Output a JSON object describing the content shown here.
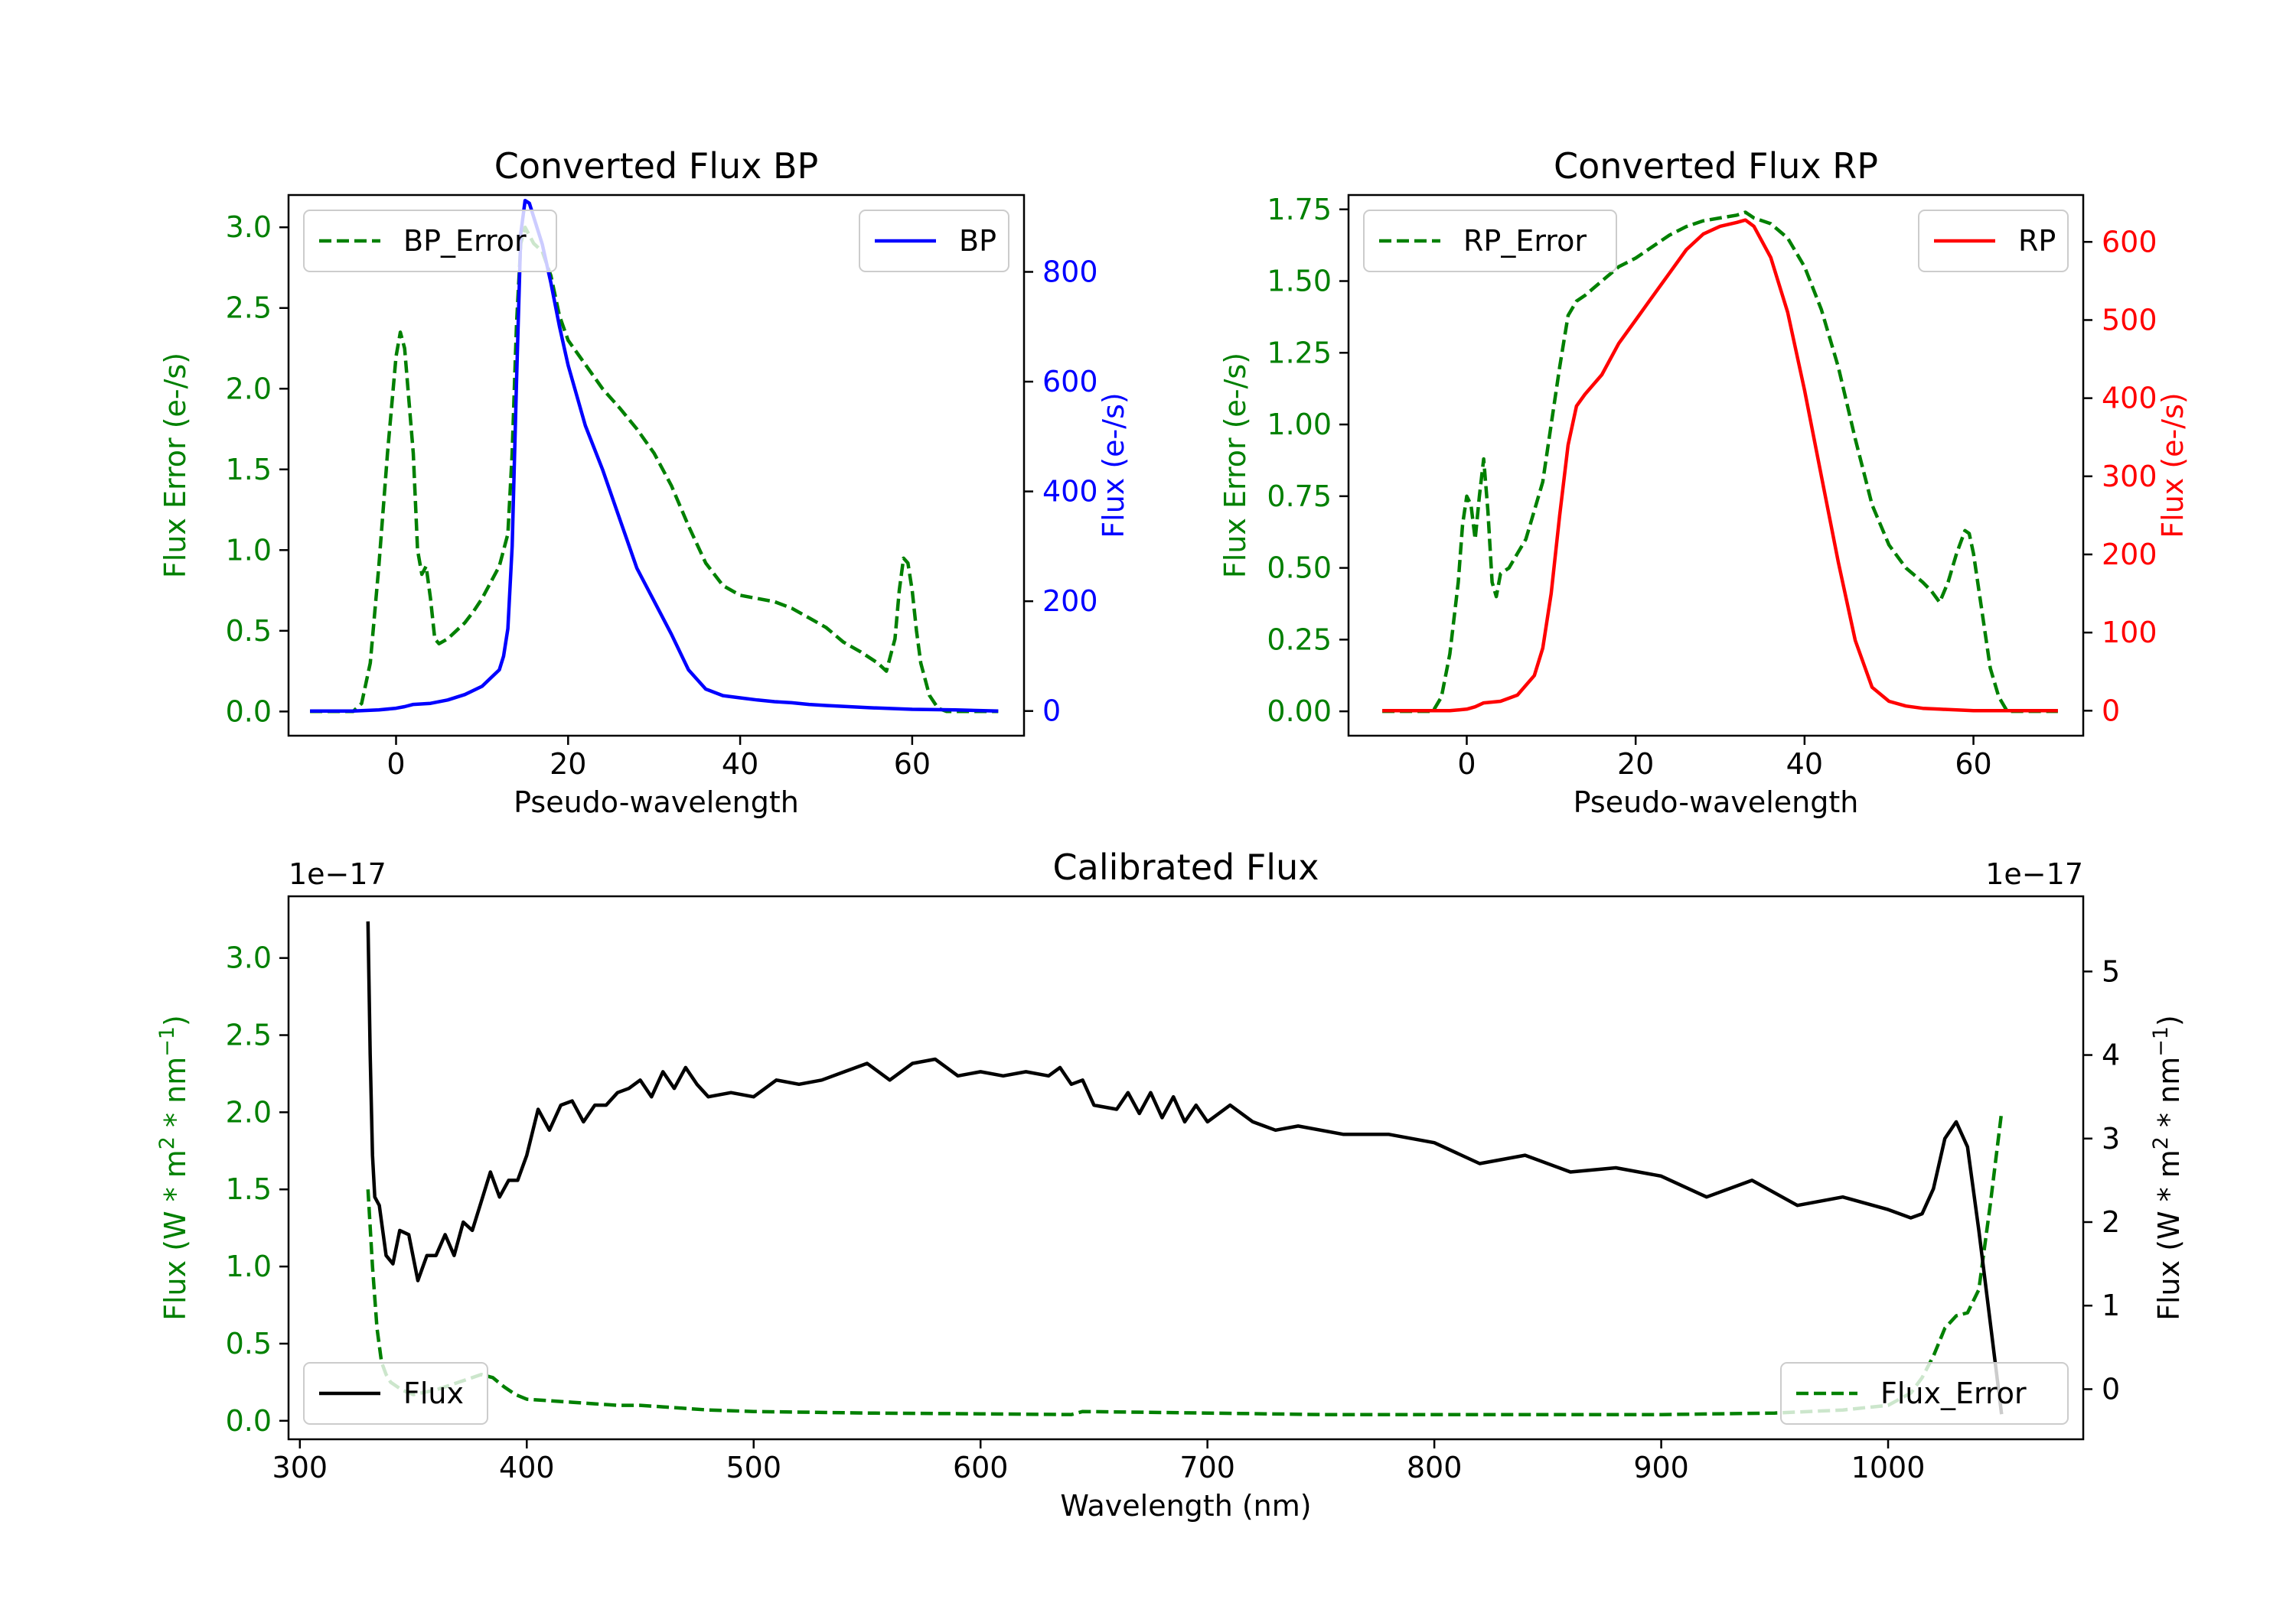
{
  "chart_data": [
    {
      "type": "line",
      "title": "Converted Flux BP",
      "xlabel": "Pseudo-wavelength",
      "xlim": [
        -12.5,
        73
      ],
      "xticks": [
        0,
        20,
        40,
        60
      ],
      "left_axis": {
        "label": "Flux Error (e-/s)",
        "color": "#008000",
        "ylim": [
          -0.15,
          3.2
        ],
        "ticks": [
          0.0,
          0.5,
          1.0,
          1.5,
          2.0,
          2.5,
          3.0
        ],
        "tick_labels": [
          "0.0",
          "0.5",
          "1.0",
          "1.5",
          "2.0",
          "2.5",
          "3.0"
        ]
      },
      "right_axis": {
        "label": "Flux (e-/s)",
        "color": "#0000ff",
        "ylim": [
          -45,
          940
        ],
        "ticks": [
          0,
          200,
          400,
          600,
          800
        ],
        "tick_labels": [
          "0",
          "200",
          "400",
          "600",
          "800"
        ]
      },
      "series": [
        {
          "name": "BP_Error",
          "axis": "left",
          "style": "dashed",
          "color": "#008000",
          "x": [
            -10,
            -5,
            -4,
            -3,
            -2,
            -1,
            0,
            0.5,
            1,
            2,
            2.5,
            3,
            3.5,
            4,
            4.5,
            5,
            6,
            7,
            8,
            9,
            10,
            11,
            12,
            13,
            13.5,
            14,
            14.5,
            15,
            15.5,
            16,
            17,
            18,
            19,
            20,
            22,
            24,
            26,
            28,
            30,
            32,
            34,
            36,
            38,
            40,
            42,
            44,
            46,
            48,
            50,
            52,
            54,
            56,
            57,
            58,
            58.5,
            59,
            59.5,
            60,
            60.5,
            61,
            62,
            63,
            64,
            65,
            70
          ],
          "values": [
            0.0,
            0.0,
            0.05,
            0.3,
            0.9,
            1.6,
            2.2,
            2.35,
            2.25,
            1.6,
            1.0,
            0.85,
            0.9,
            0.7,
            0.45,
            0.42,
            0.45,
            0.5,
            0.55,
            0.62,
            0.7,
            0.8,
            0.9,
            1.1,
            1.6,
            2.4,
            2.9,
            3.0,
            2.95,
            2.9,
            2.85,
            2.7,
            2.45,
            2.3,
            2.15,
            2.0,
            1.88,
            1.75,
            1.6,
            1.4,
            1.15,
            0.92,
            0.78,
            0.72,
            0.7,
            0.68,
            0.64,
            0.58,
            0.52,
            0.43,
            0.37,
            0.3,
            0.25,
            0.45,
            0.75,
            0.95,
            0.92,
            0.75,
            0.5,
            0.3,
            0.1,
            0.02,
            0.0,
            0.0,
            0.0
          ]
        },
        {
          "name": "BP",
          "axis": "right",
          "style": "solid",
          "color": "#0000ff",
          "x": [
            -10,
            -5,
            -2,
            0,
            1,
            2,
            4,
            6,
            8,
            10,
            11,
            12,
            12.5,
            13,
            13.5,
            14,
            14.5,
            15,
            15.5,
            16,
            17,
            18,
            19,
            20,
            22,
            24,
            26,
            28,
            30,
            32,
            34,
            36,
            38,
            40,
            42,
            44,
            46,
            48,
            50,
            55,
            60,
            65,
            70
          ],
          "values": [
            0,
            0,
            2,
            5,
            8,
            12,
            14,
            20,
            30,
            45,
            60,
            75,
            100,
            150,
            300,
            600,
            870,
            930,
            925,
            900,
            850,
            780,
            700,
            630,
            520,
            440,
            350,
            260,
            200,
            140,
            75,
            40,
            28,
            24,
            20,
            17,
            15,
            12,
            10,
            6,
            3,
            2,
            0
          ]
        }
      ],
      "legend": [
        {
          "label": "BP_Error",
          "style": "dashed",
          "color": "#008000",
          "placement": "upper left"
        },
        {
          "label": "BP",
          "style": "solid",
          "color": "#0000ff",
          "placement": "upper right"
        }
      ]
    },
    {
      "type": "line",
      "title": "Converted Flux RP",
      "xlabel": "Pseudo-wavelength",
      "xlim": [
        -14,
        73
      ],
      "xticks": [
        0,
        20,
        40,
        60
      ],
      "left_axis": {
        "label": "Flux Error (e-/s)",
        "color": "#008000",
        "ylim": [
          -0.085,
          1.8
        ],
        "ticks": [
          0.0,
          0.25,
          0.5,
          0.75,
          1.0,
          1.25,
          1.5,
          1.75
        ],
        "tick_labels": [
          "0.00",
          "0.25",
          "0.50",
          "0.75",
          "1.00",
          "1.25",
          "1.50",
          "1.75"
        ]
      },
      "right_axis": {
        "label": "Flux (e-/s)",
        "color": "#ff0000",
        "ylim": [
          -32,
          660
        ],
        "ticks": [
          0,
          100,
          200,
          300,
          400,
          500,
          600
        ],
        "tick_labels": [
          "0",
          "100",
          "200",
          "300",
          "400",
          "500",
          "600"
        ]
      },
      "series": [
        {
          "name": "RP_Error",
          "axis": "left",
          "style": "dashed",
          "color": "#008000",
          "x": [
            -10,
            -4,
            -3,
            -2,
            -1,
            -0.5,
            0,
            0.5,
            1,
            1.5,
            2,
            2.5,
            3,
            3.5,
            4,
            5,
            6,
            7,
            8,
            9,
            10,
            11,
            12,
            13,
            14,
            16,
            18,
            20,
            22,
            24,
            26,
            28,
            30,
            32,
            33,
            34,
            36,
            38,
            40,
            42,
            44,
            46,
            48,
            50,
            52,
            54,
            55,
            56,
            57,
            58,
            59,
            59.5,
            60,
            61,
            62,
            63,
            64,
            70
          ],
          "values": [
            0.0,
            0.0,
            0.05,
            0.2,
            0.45,
            0.65,
            0.75,
            0.72,
            0.6,
            0.75,
            0.88,
            0.7,
            0.45,
            0.4,
            0.48,
            0.5,
            0.55,
            0.6,
            0.7,
            0.8,
            1.0,
            1.2,
            1.38,
            1.43,
            1.45,
            1.5,
            1.55,
            1.58,
            1.62,
            1.66,
            1.69,
            1.71,
            1.72,
            1.73,
            1.74,
            1.72,
            1.7,
            1.65,
            1.55,
            1.4,
            1.2,
            0.95,
            0.72,
            0.58,
            0.5,
            0.45,
            0.42,
            0.38,
            0.45,
            0.55,
            0.63,
            0.62,
            0.55,
            0.35,
            0.15,
            0.05,
            0.0,
            0.0
          ]
        },
        {
          "name": "RP",
          "axis": "right",
          "style": "solid",
          "color": "#ff0000",
          "x": [
            -10,
            -5,
            -2,
            0,
            1,
            2,
            4,
            6,
            8,
            9,
            10,
            11,
            12,
            13,
            14,
            16,
            18,
            20,
            22,
            24,
            26,
            28,
            30,
            32,
            33,
            34,
            36,
            38,
            40,
            42,
            44,
            46,
            48,
            50,
            52,
            54,
            56,
            58,
            60,
            62,
            65,
            70
          ],
          "values": [
            0,
            0,
            0,
            2,
            5,
            10,
            12,
            20,
            45,
            80,
            150,
            250,
            340,
            390,
            405,
            430,
            470,
            500,
            530,
            560,
            590,
            610,
            620,
            625,
            628,
            620,
            580,
            510,
            410,
            300,
            190,
            90,
            30,
            12,
            6,
            3,
            2,
            1,
            0,
            0,
            0,
            0
          ]
        }
      ],
      "legend": [
        {
          "label": "RP_Error",
          "style": "dashed",
          "color": "#008000",
          "placement": "upper left"
        },
        {
          "label": "RP",
          "style": "solid",
          "color": "#ff0000",
          "placement": "upper right"
        }
      ]
    },
    {
      "type": "line",
      "title": "Calibrated Flux",
      "xlabel": "Wavelength (nm)",
      "xlim": [
        295,
        1086
      ],
      "xticks": [
        300,
        400,
        500,
        600,
        700,
        800,
        900,
        1000
      ],
      "left_axis": {
        "label": "Flux (W * m$^2$ * nm$^{-1}$)",
        "color": "#008000",
        "ylim": [
          -0.12,
          3.4
        ],
        "offset_text": "1e−17",
        "ticks": [
          0.0,
          0.5,
          1.0,
          1.5,
          2.0,
          2.5,
          3.0
        ],
        "tick_labels": [
          "0.0",
          "0.5",
          "1.0",
          "1.5",
          "2.0",
          "2.5",
          "3.0"
        ]
      },
      "right_axis": {
        "label": "Flux (W * m$^2$ * nm$^{-1}$)",
        "color": "#000000",
        "ylim": [
          -0.6,
          5.9
        ],
        "offset_text": "1e−17",
        "ticks": [
          0,
          1,
          2,
          3,
          4,
          5
        ],
        "tick_labels": [
          "0",
          "1",
          "2",
          "3",
          "4",
          "5"
        ]
      },
      "series": [
        {
          "name": "Flux_Error",
          "axis": "left",
          "style": "dashed",
          "color": "#008000",
          "x": [
            330,
            332,
            334,
            336,
            338,
            340,
            345,
            350,
            360,
            370,
            380,
            385,
            390,
            395,
            400,
            410,
            420,
            430,
            440,
            450,
            460,
            480,
            500,
            550,
            600,
            640,
            645,
            700,
            750,
            800,
            850,
            900,
            950,
            980,
            1000,
            1010,
            1015,
            1020,
            1025,
            1030,
            1035,
            1040,
            1045,
            1050
          ],
          "values": [
            1.5,
            1.0,
            0.6,
            0.38,
            0.3,
            0.25,
            0.2,
            0.17,
            0.2,
            0.25,
            0.3,
            0.28,
            0.22,
            0.17,
            0.14,
            0.13,
            0.12,
            0.11,
            0.1,
            0.1,
            0.09,
            0.07,
            0.06,
            0.05,
            0.045,
            0.04,
            0.06,
            0.05,
            0.04,
            0.04,
            0.04,
            0.04,
            0.05,
            0.07,
            0.1,
            0.18,
            0.28,
            0.42,
            0.6,
            0.68,
            0.7,
            0.85,
            1.4,
            2.0
          ]
        },
        {
          "name": "Flux",
          "axis": "right",
          "style": "solid",
          "color": "#000000",
          "x": [
            330,
            331,
            332,
            333,
            335,
            338,
            341,
            344,
            348,
            352,
            356,
            360,
            364,
            368,
            372,
            376,
            380,
            384,
            388,
            392,
            396,
            400,
            405,
            410,
            415,
            420,
            425,
            430,
            435,
            440,
            445,
            450,
            455,
            460,
            465,
            470,
            475,
            480,
            490,
            500,
            510,
            520,
            530,
            540,
            550,
            560,
            570,
            580,
            590,
            600,
            610,
            620,
            630,
            635,
            640,
            645,
            650,
            660,
            665,
            670,
            675,
            680,
            685,
            690,
            695,
            700,
            710,
            720,
            730,
            740,
            760,
            780,
            800,
            820,
            840,
            860,
            880,
            900,
            920,
            940,
            960,
            980,
            1000,
            1010,
            1015,
            1020,
            1025,
            1030,
            1035,
            1040,
            1045,
            1050
          ],
          "values": [
            5.6,
            4.0,
            2.8,
            2.3,
            2.2,
            1.6,
            1.5,
            1.9,
            1.85,
            1.3,
            1.6,
            1.6,
            1.85,
            1.6,
            2.0,
            1.9,
            2.25,
            2.6,
            2.3,
            2.5,
            2.5,
            2.8,
            3.35,
            3.1,
            3.4,
            3.45,
            3.2,
            3.4,
            3.4,
            3.55,
            3.6,
            3.7,
            3.5,
            3.8,
            3.6,
            3.85,
            3.65,
            3.5,
            3.55,
            3.5,
            3.7,
            3.65,
            3.7,
            3.8,
            3.9,
            3.7,
            3.9,
            3.95,
            3.75,
            3.8,
            3.75,
            3.8,
            3.75,
            3.85,
            3.65,
            3.7,
            3.4,
            3.35,
            3.55,
            3.3,
            3.55,
            3.25,
            3.5,
            3.2,
            3.4,
            3.2,
            3.4,
            3.2,
            3.1,
            3.15,
            3.05,
            3.05,
            2.95,
            2.7,
            2.8,
            2.6,
            2.65,
            2.55,
            2.3,
            2.5,
            2.2,
            2.3,
            2.15,
            2.05,
            2.1,
            2.4,
            3.0,
            3.2,
            2.9,
            1.9,
            0.8,
            -0.3
          ]
        }
      ],
      "legend": [
        {
          "label": "Flux",
          "style": "solid",
          "color": "#000000",
          "placement": "lower left"
        },
        {
          "label": "Flux_Error",
          "style": "dashed",
          "color": "#008000",
          "placement": "lower right"
        }
      ]
    }
  ]
}
